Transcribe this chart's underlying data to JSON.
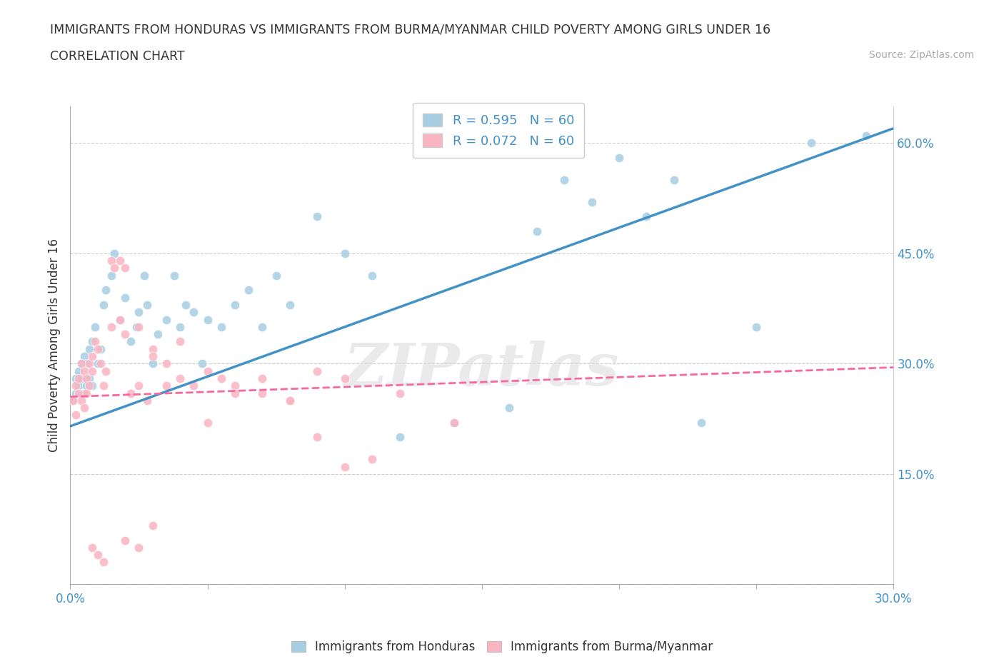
{
  "title_line1": "IMMIGRANTS FROM HONDURAS VS IMMIGRANTS FROM BURMA/MYANMAR CHILD POVERTY AMONG GIRLS UNDER 16",
  "title_line2": "CORRELATION CHART",
  "source_text": "Source: ZipAtlas.com",
  "ylabel": "Child Poverty Among Girls Under 16",
  "xlim": [
    0.0,
    0.3
  ],
  "ylim": [
    0.0,
    0.65
  ],
  "yticks": [
    0.0,
    0.15,
    0.3,
    0.45,
    0.6
  ],
  "xticks": [
    0.0,
    0.05,
    0.1,
    0.15,
    0.2,
    0.25,
    0.3
  ],
  "xlabel_labels": [
    "0.0%",
    "",
    "",
    "",
    "",
    "",
    "30.0%"
  ],
  "ylabel_labels": [
    "",
    "15.0%",
    "30.0%",
    "45.0%",
    "60.0%"
  ],
  "blue_color": "#a6cee3",
  "pink_color": "#fbb4c2",
  "blue_line_color": "#4292c6",
  "pink_line_color": "#f768a1",
  "legend_blue_label": "R = 0.595   N = 60",
  "legend_pink_label": "R = 0.072   N = 60",
  "watermark": "ZIPatlas",
  "blue_scatter_x": [
    0.001,
    0.002,
    0.002,
    0.003,
    0.003,
    0.004,
    0.004,
    0.005,
    0.005,
    0.006,
    0.006,
    0.007,
    0.007,
    0.008,
    0.008,
    0.009,
    0.01,
    0.011,
    0.012,
    0.013,
    0.015,
    0.016,
    0.018,
    0.02,
    0.022,
    0.024,
    0.025,
    0.027,
    0.028,
    0.03,
    0.032,
    0.035,
    0.038,
    0.04,
    0.042,
    0.045,
    0.048,
    0.05,
    0.055,
    0.06,
    0.065,
    0.07,
    0.075,
    0.08,
    0.09,
    0.1,
    0.11,
    0.12,
    0.14,
    0.16,
    0.17,
    0.18,
    0.19,
    0.2,
    0.21,
    0.22,
    0.23,
    0.25,
    0.27,
    0.29
  ],
  "blue_scatter_y": [
    0.25,
    0.26,
    0.28,
    0.27,
    0.29,
    0.28,
    0.3,
    0.26,
    0.31,
    0.27,
    0.3,
    0.28,
    0.32,
    0.27,
    0.33,
    0.35,
    0.3,
    0.32,
    0.38,
    0.4,
    0.42,
    0.45,
    0.36,
    0.39,
    0.33,
    0.35,
    0.37,
    0.42,
    0.38,
    0.3,
    0.34,
    0.36,
    0.42,
    0.35,
    0.38,
    0.37,
    0.3,
    0.36,
    0.35,
    0.38,
    0.4,
    0.35,
    0.42,
    0.38,
    0.5,
    0.45,
    0.42,
    0.2,
    0.22,
    0.24,
    0.48,
    0.55,
    0.52,
    0.58,
    0.5,
    0.55,
    0.22,
    0.35,
    0.6,
    0.61
  ],
  "pink_scatter_x": [
    0.001,
    0.002,
    0.002,
    0.003,
    0.003,
    0.004,
    0.004,
    0.005,
    0.005,
    0.006,
    0.006,
    0.007,
    0.007,
    0.008,
    0.008,
    0.009,
    0.01,
    0.011,
    0.012,
    0.013,
    0.015,
    0.016,
    0.018,
    0.02,
    0.022,
    0.025,
    0.028,
    0.03,
    0.035,
    0.04,
    0.045,
    0.05,
    0.055,
    0.06,
    0.07,
    0.08,
    0.09,
    0.1,
    0.12,
    0.14,
    0.015,
    0.018,
    0.02,
    0.025,
    0.03,
    0.035,
    0.04,
    0.05,
    0.06,
    0.07,
    0.08,
    0.09,
    0.1,
    0.11,
    0.02,
    0.025,
    0.03,
    0.008,
    0.01,
    0.012
  ],
  "pink_scatter_y": [
    0.25,
    0.23,
    0.27,
    0.26,
    0.28,
    0.25,
    0.3,
    0.24,
    0.29,
    0.26,
    0.28,
    0.3,
    0.27,
    0.29,
    0.31,
    0.33,
    0.32,
    0.3,
    0.27,
    0.29,
    0.44,
    0.43,
    0.44,
    0.43,
    0.26,
    0.27,
    0.25,
    0.32,
    0.3,
    0.33,
    0.27,
    0.29,
    0.28,
    0.27,
    0.26,
    0.25,
    0.29,
    0.28,
    0.26,
    0.22,
    0.35,
    0.36,
    0.34,
    0.35,
    0.31,
    0.27,
    0.28,
    0.22,
    0.26,
    0.28,
    0.25,
    0.2,
    0.16,
    0.17,
    0.06,
    0.05,
    0.08,
    0.05,
    0.04,
    0.03
  ],
  "blue_line_x": [
    0.0,
    0.3
  ],
  "blue_line_y": [
    0.215,
    0.62
  ],
  "pink_line_x": [
    0.0,
    0.3
  ],
  "pink_line_y": [
    0.255,
    0.295
  ],
  "bottom_legend_blue": "Immigrants from Honduras",
  "bottom_legend_pink": "Immigrants from Burma/Myanmar"
}
